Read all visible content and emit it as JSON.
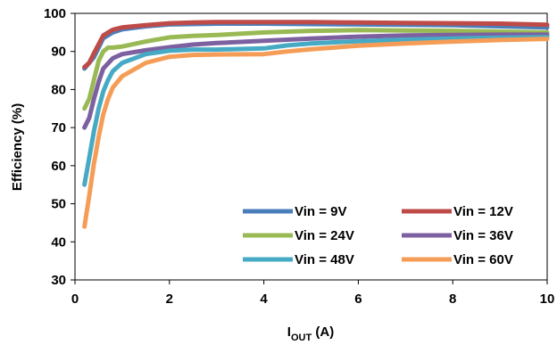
{
  "chart_data": {
    "type": "line",
    "title": "",
    "xlabel": "I",
    "xlabel_sub": "OUT",
    "xlabel_unit": " (A)",
    "ylabel": "Efficiency (%)",
    "xlim": [
      0,
      10
    ],
    "ylim": [
      30,
      100
    ],
    "x_ticks": [
      0,
      2,
      4,
      6,
      8,
      10
    ],
    "y_ticks": [
      30,
      40,
      50,
      60,
      70,
      80,
      90,
      100
    ],
    "grid": false,
    "legend_position": "bottom-right",
    "series": [
      {
        "name": "Vin = 9V",
        "color": "#4a7ebb",
        "x": [
          0.2,
          0.4,
          0.6,
          0.8,
          1.0,
          1.5,
          2.0,
          3.0,
          4.0,
          5.0,
          6.0,
          7.0,
          8.0,
          9.0,
          10.0
        ],
        "y": [
          85.5,
          88.5,
          93.5,
          95.0,
          95.8,
          96.6,
          97.1,
          97.3,
          97.3,
          97.2,
          97.1,
          97.0,
          96.9,
          96.6,
          96.3
        ]
      },
      {
        "name": "Vin = 12V",
        "color": "#be4b48",
        "x": [
          0.2,
          0.3,
          0.4,
          0.6,
          0.8,
          1.0,
          1.5,
          2.0,
          2.5,
          3.0,
          4.0,
          5.0,
          6.0,
          7.0,
          8.0,
          9.0,
          10.0
        ],
        "y": [
          85.9,
          87.0,
          89.5,
          94.2,
          95.7,
          96.3,
          96.9,
          97.4,
          97.6,
          97.7,
          97.7,
          97.7,
          97.6,
          97.5,
          97.4,
          97.3,
          97.0
        ]
      },
      {
        "name": "Vin = 24V",
        "color": "#98b954",
        "x": [
          0.2,
          0.3,
          0.4,
          0.5,
          0.6,
          0.7,
          0.8,
          1.0,
          1.5,
          2.0,
          2.5,
          3.0,
          4.0,
          5.0,
          6.0,
          7.0,
          8.0,
          9.0,
          10.0
        ],
        "y": [
          75.0,
          77.5,
          82.5,
          87.5,
          90.0,
          91.0,
          91.0,
          91.3,
          92.6,
          93.7,
          94.1,
          94.3,
          95.0,
          95.4,
          95.6,
          95.5,
          95.4,
          95.2,
          95.0
        ]
      },
      {
        "name": "Vin = 36V",
        "color": "#7d60a0",
        "x": [
          0.2,
          0.3,
          0.4,
          0.5,
          0.6,
          0.8,
          1.0,
          1.5,
          2.0,
          2.5,
          3.0,
          4.0,
          5.0,
          6.0,
          7.0,
          8.0,
          9.0,
          10.0
        ],
        "y": [
          70.0,
          72.5,
          77.5,
          82.0,
          85.5,
          88.2,
          89.3,
          90.3,
          91.1,
          91.8,
          92.2,
          92.8,
          93.4,
          93.9,
          94.2,
          94.3,
          94.4,
          94.4
        ]
      },
      {
        "name": "Vin = 48V",
        "color": "#46aac5",
        "x": [
          0.2,
          0.3,
          0.4,
          0.5,
          0.6,
          0.7,
          0.8,
          1.0,
          1.5,
          2.0,
          2.5,
          3.0,
          4.0,
          4.5,
          5.0,
          6.0,
          7.0,
          8.0,
          9.0,
          10.0
        ],
        "y": [
          55.0,
          62.0,
          69.0,
          75.0,
          79.5,
          82.5,
          84.8,
          87.0,
          89.3,
          90.2,
          90.5,
          90.5,
          90.8,
          91.6,
          92.1,
          92.7,
          93.1,
          93.4,
          93.6,
          93.8
        ]
      },
      {
        "name": "Vin = 60V",
        "color": "#f59d56",
        "x": [
          0.2,
          0.3,
          0.4,
          0.5,
          0.6,
          0.7,
          0.8,
          1.0,
          1.5,
          2.0,
          2.5,
          3.0,
          4.0,
          4.5,
          5.0,
          6.0,
          7.0,
          8.0,
          9.0,
          10.0
        ],
        "y": [
          44.0,
          52.0,
          60.5,
          67.5,
          73.5,
          77.5,
          80.5,
          83.5,
          87.0,
          88.6,
          89.1,
          89.2,
          89.3,
          90.0,
          90.6,
          91.5,
          92.1,
          92.6,
          93.0,
          93.3
        ]
      }
    ]
  }
}
